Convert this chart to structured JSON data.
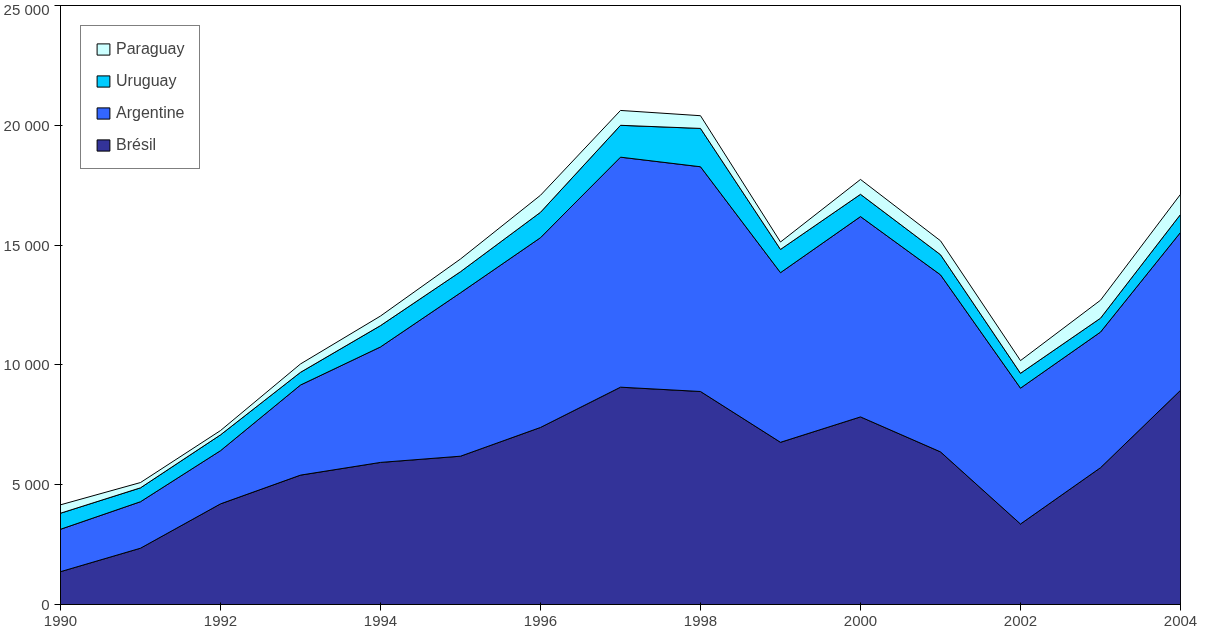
{
  "chart_data": {
    "type": "area",
    "stacked": true,
    "x": [
      1990,
      1991,
      1992,
      1993,
      1994,
      1995,
      1996,
      1997,
      1998,
      1999,
      2000,
      2001,
      2002,
      2003,
      2004
    ],
    "series": [
      {
        "name": "Brésil",
        "color": "#333399",
        "values": [
          1370,
          2350,
          4200,
          5400,
          5930,
          6190,
          7390,
          9070,
          8890,
          6770,
          7830,
          6370,
          3360,
          5710,
          8940
        ]
      },
      {
        "name": "Argentine",
        "color": "#3366ff",
        "values": [
          1770,
          1940,
          2220,
          3760,
          4820,
          6820,
          7920,
          9600,
          9380,
          7080,
          8360,
          7390,
          5670,
          5660,
          6590
        ]
      },
      {
        "name": "Uruguay",
        "color": "#00ccff",
        "values": [
          670,
          580,
          660,
          530,
          890,
          880,
          1060,
          1330,
          1600,
          970,
          930,
          840,
          620,
          580,
          750
        ]
      },
      {
        "name": "Paraguay",
        "color": "#ccffff",
        "values": [
          350,
          220,
          180,
          350,
          400,
          530,
          710,
          620,
          530,
          310,
          620,
          580,
          530,
          750,
          840
        ]
      }
    ],
    "xlim": [
      1990,
      2004
    ],
    "xticks": [
      1990,
      1992,
      1994,
      1996,
      1998,
      2000,
      2002,
      2004
    ],
    "ylim": [
      0,
      25000
    ],
    "yticks": [
      0,
      {
        "value": 5000,
        "label": "5 000"
      },
      {
        "value": 10000,
        "label": "10 000"
      },
      {
        "value": 15000,
        "label": "15 000"
      },
      {
        "value": 20000,
        "label": "20 000"
      },
      {
        "value": 25000,
        "label": "25 000"
      }
    ],
    "grid": false,
    "legend": "top left"
  }
}
